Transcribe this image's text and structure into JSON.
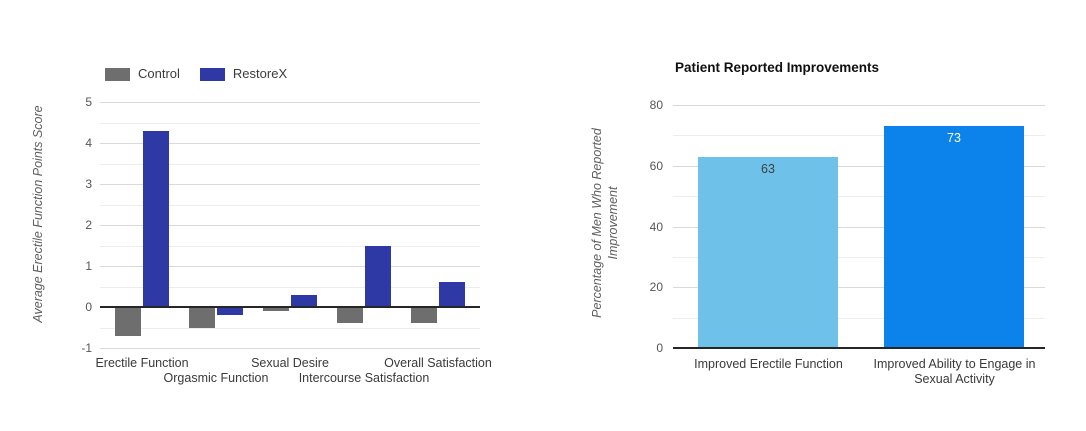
{
  "figure": {
    "background": "#ffffff"
  },
  "chart_data": [
    {
      "type": "bar",
      "title": "",
      "ylabel": "Average Erectile Function Points Score",
      "xlabel": "",
      "categories": [
        "Erectile Function",
        "Orgasmic Function",
        "Sexual Desire",
        "Intercourse Satisfaction",
        "Overall Satisfaction"
      ],
      "series": [
        {
          "name": "Control",
          "color": "#6e6e6e",
          "values": [
            -0.7,
            -0.5,
            -0.1,
            -0.4,
            -0.4
          ]
        },
        {
          "name": "RestoreX",
          "color": "#2e39a6",
          "values": [
            4.3,
            -0.2,
            0.3,
            1.5,
            0.6
          ]
        }
      ],
      "ylim": [
        -1,
        5
      ],
      "yticks": [
        -1,
        0,
        1,
        2,
        3,
        4,
        5
      ],
      "grid": "horizontal every 0.5, light gray",
      "legend_position": "top-left",
      "category_label_layout": "staggered two rows"
    },
    {
      "type": "bar",
      "title": "Patient Reported Improvements",
      "ylabel": "Percentage of Men Who Reported Improvement",
      "xlabel": "",
      "categories": [
        "Improved Erectile Function",
        "Improved Ability to Engage in Sexual Activity"
      ],
      "values": [
        63,
        73
      ],
      "bar_colors": [
        "#6ec2ea",
        "#0c83ea"
      ],
      "data_labels": {
        "texts": [
          "63",
          "73"
        ],
        "colors": [
          "#3e3e3e",
          "#ffffff"
        ],
        "position": "inside-top"
      },
      "ylim": [
        0,
        80
      ],
      "yticks": [
        0,
        20,
        40,
        60,
        80
      ],
      "grid": "horizontal every 10, light gray",
      "legend_position": "none"
    }
  ]
}
